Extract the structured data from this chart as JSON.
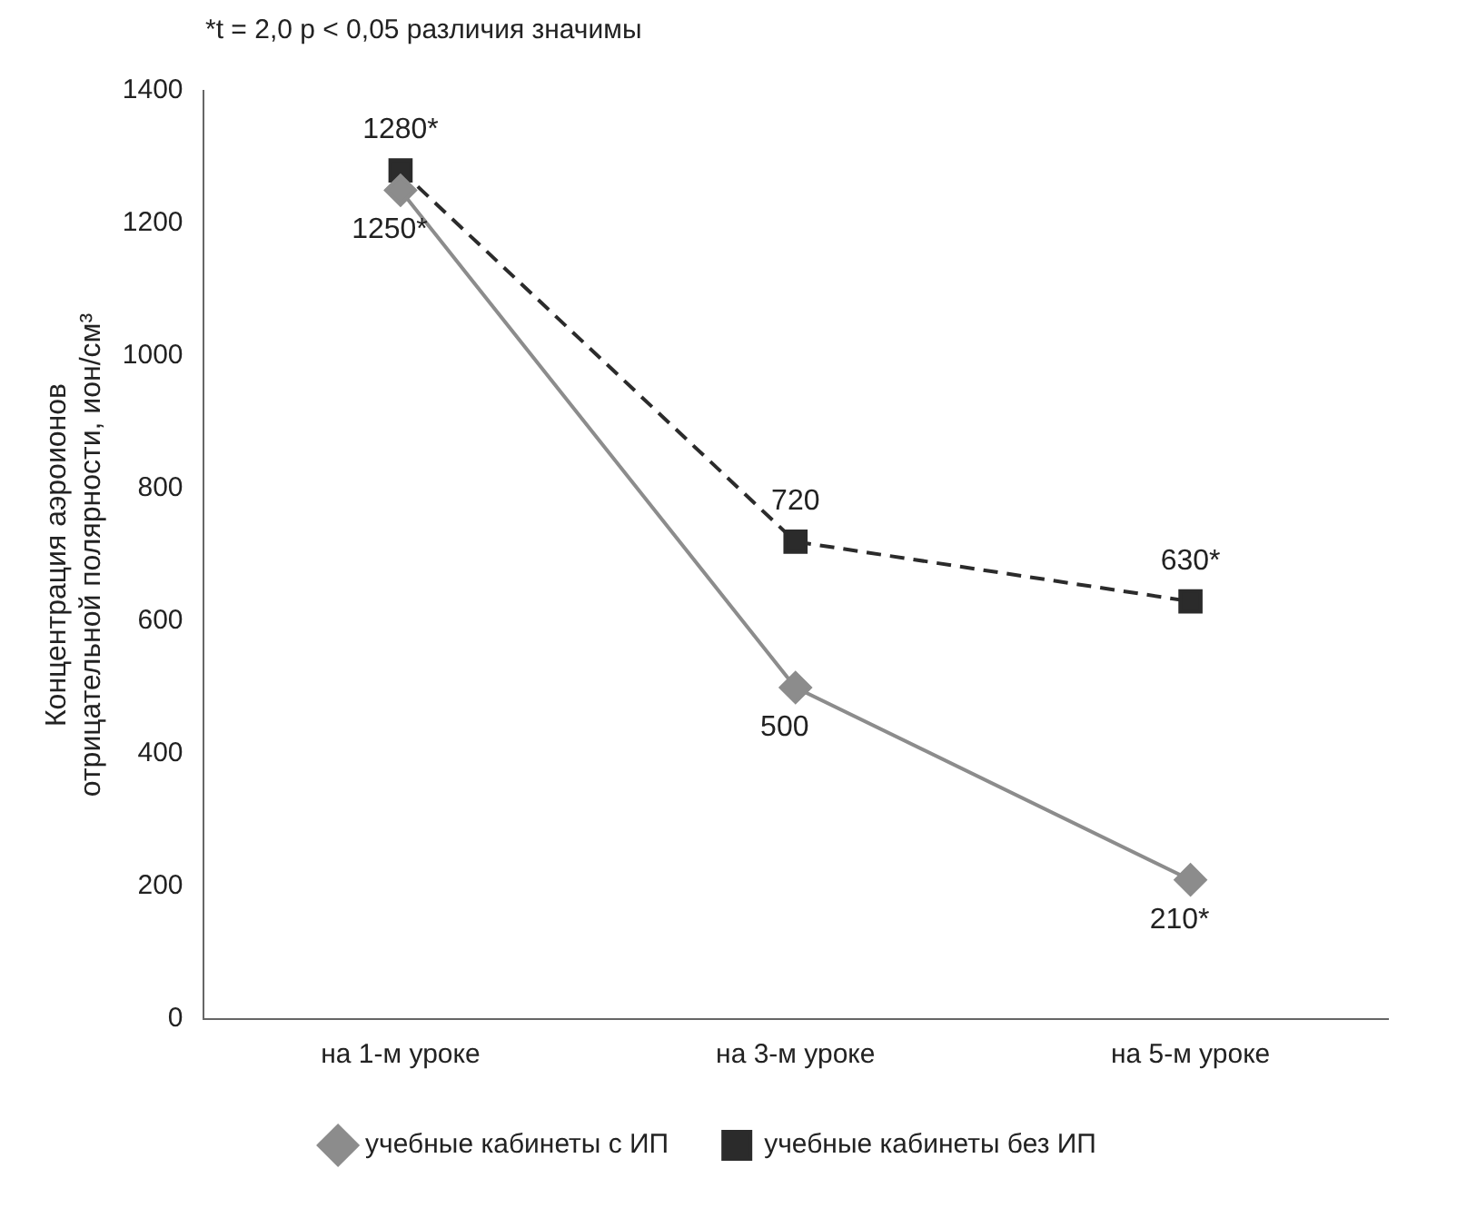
{
  "chart_data": {
    "type": "line",
    "ylabel": "Концентрация аэроионов\nотрицательной полярности, ион/см³",
    "annotations": [
      "*t = 2,0 p < 0,05 различия значимы"
    ],
    "categories": [
      "на 1-м уроке",
      "на 3-м уроке",
      "на 5-м уроке"
    ],
    "series": [
      {
        "name": "учебные кабинеты с ИП",
        "color": "#8c8c8c",
        "values": [
          1250,
          500,
          210
        ],
        "marker": "diamond",
        "line_style": "solid",
        "value_labels": [
          "1250*",
          "500",
          "210*"
        ]
      },
      {
        "name": "учебные кабинеты без ИП",
        "color": "#2b2b2b",
        "values": [
          1280,
          720,
          630
        ],
        "marker": "square",
        "line_style": "dashed",
        "value_labels": [
          "1280*",
          "720",
          "630*"
        ]
      }
    ],
    "ylim": [
      0,
      1400
    ],
    "yticks": [
      0,
      200,
      400,
      600,
      800,
      1000,
      1200,
      1400
    ],
    "grid": false,
    "legend": "bottom"
  }
}
